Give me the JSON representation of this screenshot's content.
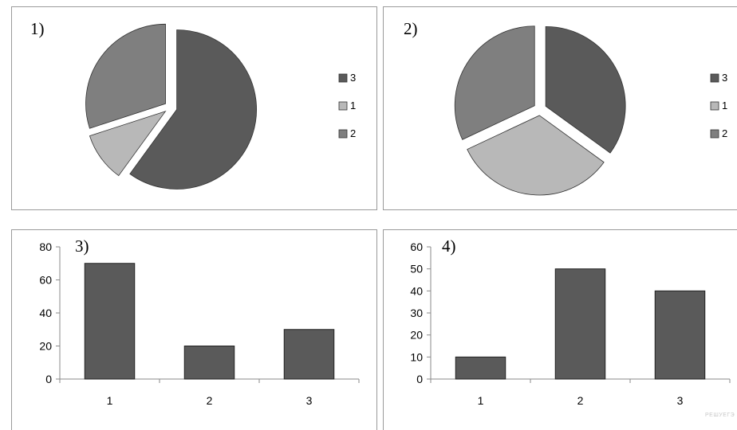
{
  "chart_data": [
    {
      "panel": "1)",
      "type": "pie",
      "categories": [
        "3",
        "1",
        "2"
      ],
      "values": [
        60,
        10,
        30
      ],
      "colors": [
        "#5a5a5a",
        "#b8b8b8",
        "#7f7f7f"
      ],
      "legend_position": "right"
    },
    {
      "panel": "2)",
      "type": "pie",
      "categories": [
        "3",
        "1",
        "2"
      ],
      "values": [
        35,
        33,
        32
      ],
      "colors": [
        "#5a5a5a",
        "#b8b8b8",
        "#7f7f7f"
      ],
      "legend_position": "right"
    },
    {
      "panel": "3)",
      "type": "bar",
      "categories": [
        "1",
        "2",
        "3"
      ],
      "values": [
        70,
        20,
        30
      ],
      "ylim": [
        0,
        80
      ],
      "yticks": [
        0,
        20,
        40,
        60,
        80
      ],
      "bar_color": "#5a5a5a",
      "grid": false
    },
    {
      "panel": "4)",
      "type": "bar",
      "categories": [
        "1",
        "2",
        "3"
      ],
      "values": [
        10,
        50,
        40
      ],
      "ylim": [
        0,
        60
      ],
      "yticks": [
        0,
        10,
        20,
        30,
        40,
        50,
        60
      ],
      "bar_color": "#5a5a5a",
      "grid": false
    }
  ],
  "watermark": "РЕШУЕГЭ"
}
